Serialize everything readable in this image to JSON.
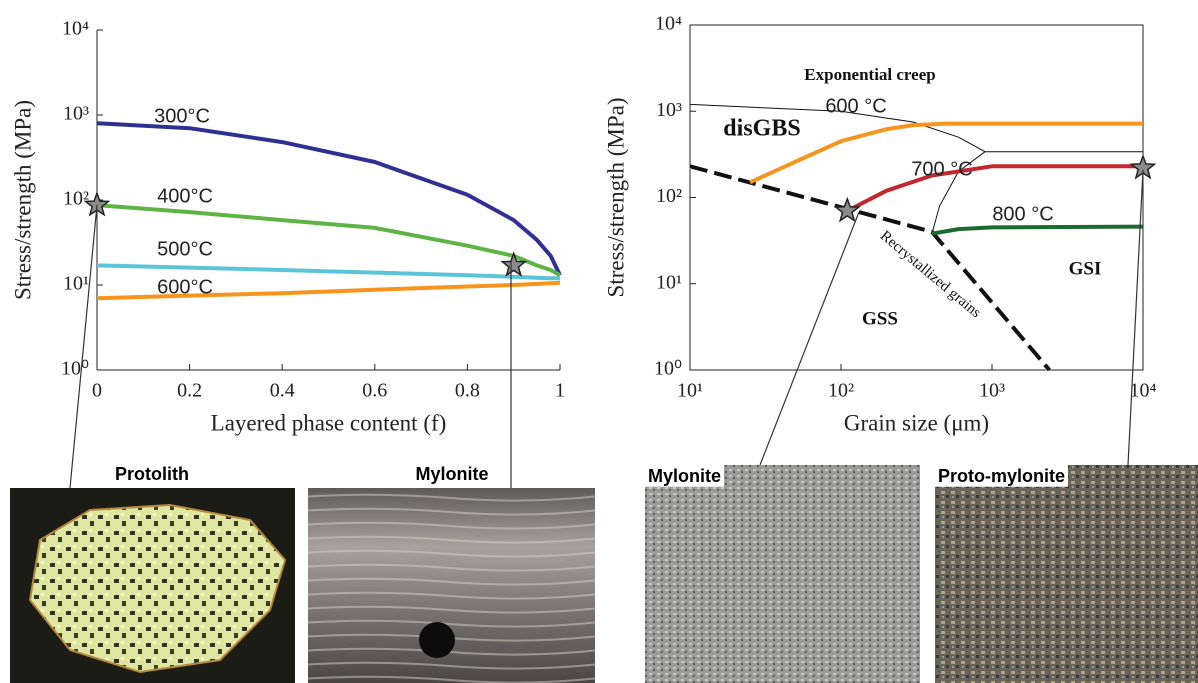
{
  "chart_data": [
    {
      "type": "line",
      "xlabel": "Layered phase content (f)",
      "ylabel": "Stress/strength (MPa)",
      "xlog": false,
      "ylog": true,
      "xlim": [
        0,
        1
      ],
      "ylim": [
        1,
        10000
      ],
      "xticks": [
        0,
        0.2,
        0.4,
        0.6,
        0.8,
        1
      ],
      "yticks": [
        {
          "value": 1,
          "label": "10⁰"
        },
        {
          "value": 10,
          "label": "10¹"
        },
        {
          "value": 100,
          "label": "10²"
        },
        {
          "value": 1000,
          "label": "10³"
        },
        {
          "value": 10000,
          "label": "10⁴"
        }
      ],
      "x": [
        0,
        0.2,
        0.4,
        0.6,
        0.8,
        0.9,
        0.95,
        0.98,
        1
      ],
      "series": [
        {
          "name": "300°C",
          "color": "#2e3192",
          "values": [
            800,
            700,
            480,
            280,
            115,
            58,
            34,
            22,
            13
          ]
        },
        {
          "name": "400°C",
          "color": "#5db445",
          "values": [
            87,
            72,
            58,
            47,
            29,
            22,
            17,
            15,
            13
          ]
        },
        {
          "name": "500°C",
          "color": "#5bc4d8",
          "values": [
            17,
            16,
            15,
            14,
            13,
            12.5,
            12.2,
            12,
            12
          ]
        },
        {
          "name": "600°C",
          "color": "#f7941d",
          "values": [
            7,
            7.5,
            8,
            8.8,
            9.6,
            10,
            10.3,
            10.5,
            10.6
          ]
        }
      ],
      "markers": {
        "x": [
          0,
          0.9
        ],
        "y": [
          87,
          17
        ]
      },
      "photos": [
        "Protolith",
        "Mylonite"
      ]
    },
    {
      "type": "line",
      "xlabel": "Grain size (μm)",
      "ylabel": "Stress/strength (MPa)",
      "xlog": true,
      "ylog": true,
      "xlim": [
        10,
        10000
      ],
      "ylim": [
        1,
        10000
      ],
      "xticks": [
        {
          "value": 10,
          "label": "10¹"
        },
        {
          "value": 100,
          "label": "10²"
        },
        {
          "value": 1000,
          "label": "10³"
        },
        {
          "value": 10000,
          "label": "10⁴"
        }
      ],
      "yticks": [
        {
          "value": 1,
          "label": "10⁰"
        },
        {
          "value": 10,
          "label": "10¹"
        },
        {
          "value": 100,
          "label": "10²"
        },
        {
          "value": 1000,
          "label": "10³"
        },
        {
          "value": 10000,
          "label": "10⁴"
        }
      ],
      "series": [
        {
          "name": "600 °C",
          "color": "#f7941d",
          "x": [
            25,
            50,
            100,
            200,
            300,
            500,
            10000
          ],
          "values": [
            150,
            260,
            450,
            620,
            690,
            720,
            720
          ]
        },
        {
          "name": "700 °C",
          "color": "#c1272d",
          "x": [
            110,
            200,
            400,
            1000,
            10000
          ],
          "values": [
            70,
            120,
            180,
            230,
            230
          ]
        },
        {
          "name": "800 °C",
          "color": "#1b6b2f",
          "x": [
            400,
            600,
            1000,
            10000
          ],
          "values": [
            38,
            43,
            45,
            46
          ]
        }
      ],
      "boundaries": [
        {
          "style": "dashed",
          "x": [
            10,
            400,
            2400
          ],
          "values": [
            230,
            40,
            1
          ]
        },
        {
          "style": "solid",
          "x": [
            10,
            100,
            300,
            600,
            900,
            10000
          ],
          "values": [
            1200,
            1000,
            750,
            500,
            340,
            340
          ]
        },
        {
          "style": "solid",
          "x": [
            900,
            600,
            450,
            400
          ],
          "values": [
            340,
            200,
            80,
            38
          ]
        }
      ],
      "annotations": [
        "Exponential creep",
        "disGBS",
        "GSS",
        "GSI",
        "Recrystallized grains"
      ],
      "markers": {
        "x": [
          110,
          10000
        ],
        "y": [
          70,
          220
        ]
      },
      "photos": [
        "Mylonite",
        "Proto-mylonite"
      ]
    }
  ]
}
